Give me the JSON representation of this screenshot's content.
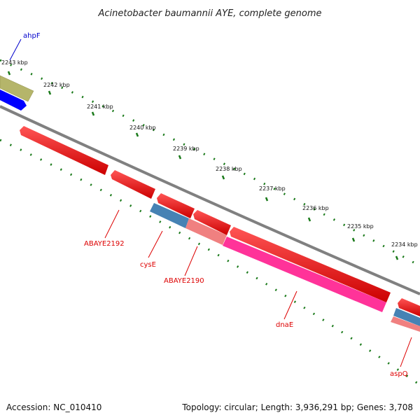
{
  "title": "Acinetobacter baumannii AYE, complete genome",
  "accession": "Accession: NC_010410",
  "summary": "Topology: circular; Length: 3,936,291 bp; Genes: 3,708",
  "ticks": [
    "2243 kbp",
    "2242 kbp",
    "2241 kbp",
    "2240 kbp",
    "2239 kbp",
    "2238 kbp",
    "2237 kbp",
    "2236 kbp",
    "2235 kbp",
    "2234 kbp"
  ],
  "genes": [
    {
      "name": "ahpF",
      "color": "#0000cc"
    },
    {
      "name": "ABAYE2192",
      "color": "#dd0000"
    },
    {
      "name": "cysE",
      "color": "#dd0000"
    },
    {
      "name": "ABAYE2190",
      "color": "#dd0000"
    },
    {
      "name": "dnaE",
      "color": "#dd0000"
    },
    {
      "name": "aspQ",
      "color": "#dd0000"
    }
  ],
  "colors": {
    "tick_green": "#1a7a1a",
    "backbone": "#808080",
    "cds_red": "#ff0000",
    "cds_pink": "#ff3399",
    "cds_salmon": "#f08080",
    "cds_steel": "#4682b4",
    "cds_blue": "#0000ff",
    "cds_olive": "#b5b56a"
  }
}
